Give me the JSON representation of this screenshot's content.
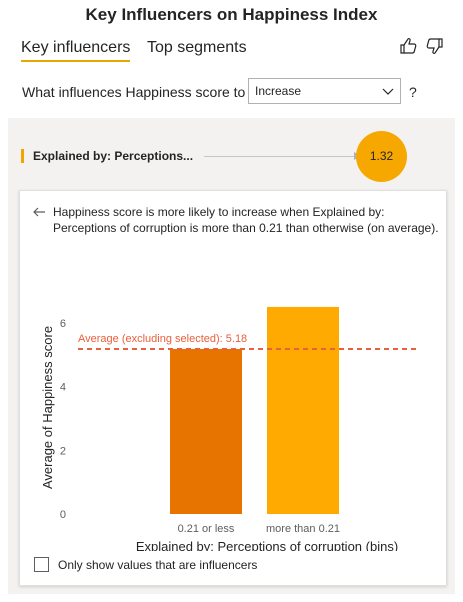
{
  "title": "Key Influencers on Happiness Index",
  "tabs": [
    {
      "label": "Key influencers",
      "active": true
    },
    {
      "label": "Top segments",
      "active": false
    }
  ],
  "feedback": {
    "like_icon": "thumbs-up-icon",
    "dislike_icon": "thumbs-down-icon"
  },
  "question": {
    "label": "What influences Happiness score to",
    "selected": "Increase",
    "help": "?"
  },
  "influencer": {
    "label": "Explained by: Perceptions...",
    "value": "1.32",
    "value_color": "#F7A800"
  },
  "detail": {
    "description": "Happiness score is more likely to increase when Explained by: Perceptions of corruption is more than 0.21 than otherwise (on average).",
    "checkbox_label": "Only show values that are influencers"
  },
  "chart_data": {
    "type": "bar",
    "categories": [
      "0.21 or less",
      "more than 0.21"
    ],
    "values": [
      5.18,
      6.5
    ],
    "colors": [
      "#E87400",
      "#FFAA00"
    ],
    "ylabel": "Average of Happiness score",
    "xlabel": "Explained by: Perceptions of corruption (bins)",
    "ylim": [
      0,
      7
    ],
    "yticks": [
      0,
      2,
      4,
      6
    ],
    "reference_line": {
      "label": "Average (excluding selected): 5.18",
      "value": 5.18,
      "color": "#E8603C"
    }
  }
}
